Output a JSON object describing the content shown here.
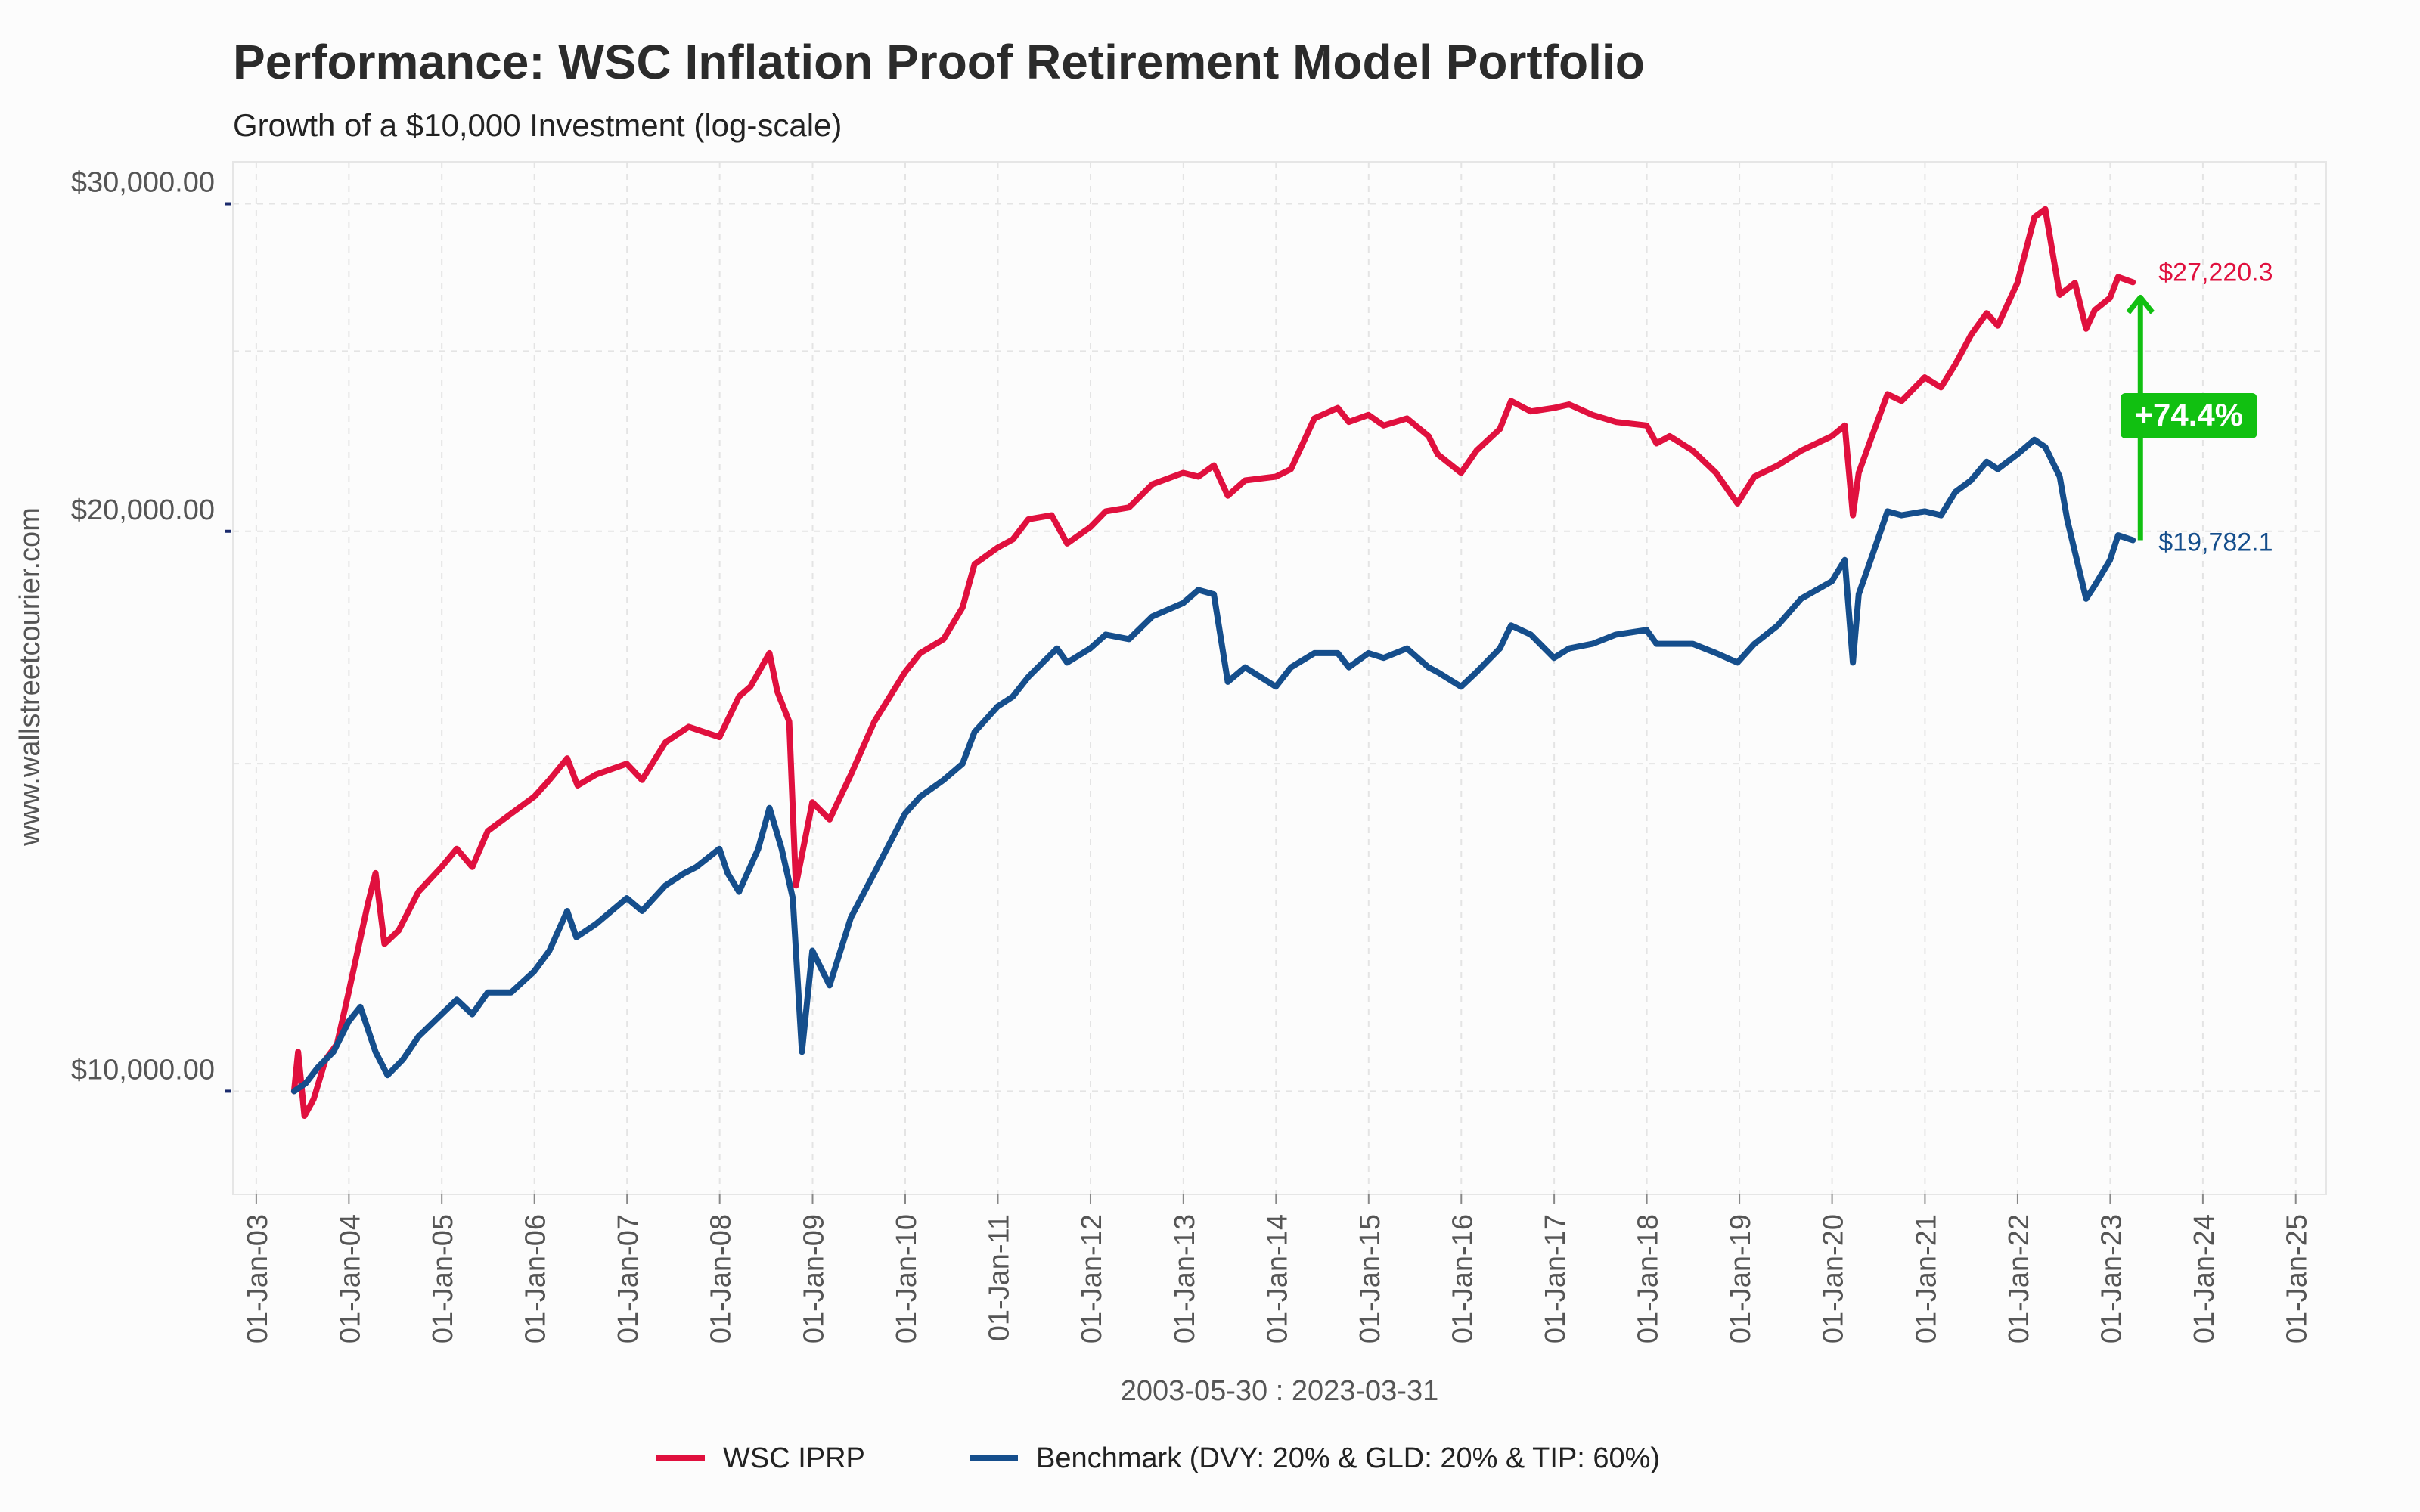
{
  "chart_data": {
    "type": "line",
    "title": "Performance: WSC Inflation Proof Retirement Model Portfolio",
    "subtitle": "Growth of a $10,000 Investment (log-scale)",
    "side_label": "www.wallstreetcourier.com",
    "xlabel": "2003-05-30 : 2023-03-31",
    "y_scale": "log",
    "ylim": [
      8800,
      31600
    ],
    "y_ticks": [
      10000,
      20000,
      30000
    ],
    "y_tick_labels": [
      "$10,000.00",
      "$20,000.00",
      "$30,000.00"
    ],
    "x_range": [
      "2002-10-01",
      "2025-05-01"
    ],
    "x_tick_labels": [
      "01-Jan-03",
      "01-Jan-04",
      "01-Jan-05",
      "01-Jan-06",
      "01-Jan-07",
      "01-Jan-08",
      "01-Jan-09",
      "01-Jan-10",
      "01-Jan-11",
      "01-Jan-12",
      "01-Jan-13",
      "01-Jan-14",
      "01-Jan-15",
      "01-Jan-16",
      "01-Jan-17",
      "01-Jan-18",
      "01-Jan-19",
      "01-Jan-20",
      "01-Jan-21",
      "01-Jan-22",
      "01-Jan-23",
      "01-Jan-24",
      "01-Jan-25"
    ],
    "x_tick_dates": [
      "2003-01-01",
      "2004-01-01",
      "2005-01-01",
      "2006-01-01",
      "2007-01-01",
      "2008-01-01",
      "2009-01-01",
      "2010-01-01",
      "2011-01-01",
      "2012-01-01",
      "2013-01-01",
      "2014-01-01",
      "2015-01-01",
      "2016-01-01",
      "2017-01-01",
      "2018-01-01",
      "2019-01-01",
      "2020-01-01",
      "2021-01-01",
      "2022-01-01",
      "2023-01-01",
      "2024-01-01",
      "2025-01-01"
    ],
    "grid": true,
    "legend_position": "bottom",
    "series": [
      {
        "name": "WSC IPRP",
        "color": "#e0103e",
        "end_label": "$27,220.3",
        "points": [
          [
            "2003-05-30",
            10000
          ],
          [
            "2003-06-15",
            10500
          ],
          [
            "2003-07-10",
            9700
          ],
          [
            "2003-08-15",
            9900
          ],
          [
            "2003-10-01",
            10400
          ],
          [
            "2003-11-15",
            10600
          ],
          [
            "2003-12-31",
            11300
          ],
          [
            "2004-03-15",
            12600
          ],
          [
            "2004-04-15",
            13100
          ],
          [
            "2004-05-20",
            12000
          ],
          [
            "2004-07-15",
            12200
          ],
          [
            "2004-10-01",
            12800
          ],
          [
            "2004-12-31",
            13200
          ],
          [
            "2005-03-01",
            13500
          ],
          [
            "2005-05-01",
            13200
          ],
          [
            "2005-07-01",
            13800
          ],
          [
            "2005-10-01",
            14100
          ],
          [
            "2005-12-31",
            14400
          ],
          [
            "2006-03-01",
            14700
          ],
          [
            "2006-05-10",
            15100
          ],
          [
            "2006-06-20",
            14600
          ],
          [
            "2006-09-01",
            14800
          ],
          [
            "2006-12-31",
            15000
          ],
          [
            "2007-03-01",
            14700
          ],
          [
            "2007-06-01",
            15400
          ],
          [
            "2007-09-01",
            15700
          ],
          [
            "2007-12-31",
            15500
          ],
          [
            "2008-03-17",
            16300
          ],
          [
            "2008-05-01",
            16500
          ],
          [
            "2008-07-15",
            17200
          ],
          [
            "2008-08-15",
            16400
          ],
          [
            "2008-10-01",
            15800
          ],
          [
            "2008-10-27",
            12900
          ],
          [
            "2008-12-31",
            14300
          ],
          [
            "2009-03-09",
            14000
          ],
          [
            "2009-06-01",
            14800
          ],
          [
            "2009-09-01",
            15800
          ],
          [
            "2009-12-31",
            16800
          ],
          [
            "2010-03-01",
            17200
          ],
          [
            "2010-06-01",
            17500
          ],
          [
            "2010-08-15",
            18200
          ],
          [
            "2010-10-01",
            19200
          ],
          [
            "2010-12-31",
            19600
          ],
          [
            "2011-03-01",
            19800
          ],
          [
            "2011-05-01",
            20300
          ],
          [
            "2011-08-01",
            20400
          ],
          [
            "2011-10-01",
            19700
          ],
          [
            "2011-12-31",
            20100
          ],
          [
            "2012-03-01",
            20500
          ],
          [
            "2012-06-01",
            20600
          ],
          [
            "2012-09-01",
            21200
          ],
          [
            "2012-12-31",
            21500
          ],
          [
            "2013-03-01",
            21400
          ],
          [
            "2013-05-01",
            21700
          ],
          [
            "2013-06-25",
            20900
          ],
          [
            "2013-09-01",
            21300
          ],
          [
            "2013-12-31",
            21400
          ],
          [
            "2014-03-01",
            21600
          ],
          [
            "2014-06-01",
            23000
          ],
          [
            "2014-09-01",
            23300
          ],
          [
            "2014-10-15",
            22900
          ],
          [
            "2014-12-31",
            23100
          ],
          [
            "2015-03-01",
            22800
          ],
          [
            "2015-06-01",
            23000
          ],
          [
            "2015-08-25",
            22500
          ],
          [
            "2015-09-30",
            22000
          ],
          [
            "2015-12-31",
            21500
          ],
          [
            "2016-03-01",
            22100
          ],
          [
            "2016-06-01",
            22700
          ],
          [
            "2016-07-15",
            23500
          ],
          [
            "2016-10-01",
            23200
          ],
          [
            "2016-12-31",
            23300
          ],
          [
            "2017-03-01",
            23400
          ],
          [
            "2017-06-01",
            23100
          ],
          [
            "2017-09-01",
            22900
          ],
          [
            "2017-12-31",
            22800
          ],
          [
            "2018-02-08",
            22300
          ],
          [
            "2018-04-01",
            22500
          ],
          [
            "2018-07-01",
            22100
          ],
          [
            "2018-10-01",
            21500
          ],
          [
            "2018-12-24",
            20700
          ],
          [
            "2019-03-01",
            21400
          ],
          [
            "2019-06-01",
            21700
          ],
          [
            "2019-09-01",
            22100
          ],
          [
            "2019-12-31",
            22500
          ],
          [
            "2020-02-20",
            22800
          ],
          [
            "2020-03-23",
            20400
          ],
          [
            "2020-04-15",
            21500
          ],
          [
            "2020-06-01",
            22400
          ],
          [
            "2020-08-06",
            23700
          ],
          [
            "2020-10-01",
            23500
          ],
          [
            "2020-12-31",
            24200
          ],
          [
            "2021-03-05",
            23900
          ],
          [
            "2021-05-01",
            24600
          ],
          [
            "2021-07-01",
            25500
          ],
          [
            "2021-09-01",
            26200
          ],
          [
            "2021-10-15",
            25800
          ],
          [
            "2021-12-31",
            27200
          ],
          [
            "2022-03-08",
            29500
          ],
          [
            "2022-04-20",
            29800
          ],
          [
            "2022-06-16",
            26800
          ],
          [
            "2022-08-15",
            27200
          ],
          [
            "2022-09-28",
            25700
          ],
          [
            "2022-11-01",
            26300
          ],
          [
            "2022-12-31",
            26700
          ],
          [
            "2023-02-01",
            27400
          ],
          [
            "2023-03-31",
            27220.3
          ]
        ]
      },
      {
        "name": "Benchmark (DVY: 20% & GLD: 20% & TIP: 60%)",
        "color": "#154e8c",
        "end_label": "$19,782.1",
        "points": [
          [
            "2003-05-30",
            10000
          ],
          [
            "2003-07-15",
            10100
          ],
          [
            "2003-09-01",
            10300
          ],
          [
            "2003-11-01",
            10500
          ],
          [
            "2003-12-31",
            10900
          ],
          [
            "2004-02-15",
            11100
          ],
          [
            "2004-04-15",
            10500
          ],
          [
            "2004-06-01",
            10200
          ],
          [
            "2004-08-01",
            10400
          ],
          [
            "2004-10-01",
            10700
          ],
          [
            "2004-12-31",
            11000
          ],
          [
            "2005-03-01",
            11200
          ],
          [
            "2005-05-01",
            11000
          ],
          [
            "2005-07-01",
            11300
          ],
          [
            "2005-10-01",
            11300
          ],
          [
            "2005-12-31",
            11600
          ],
          [
            "2006-03-01",
            11900
          ],
          [
            "2006-05-10",
            12500
          ],
          [
            "2006-06-15",
            12100
          ],
          [
            "2006-09-01",
            12300
          ],
          [
            "2006-12-31",
            12700
          ],
          [
            "2007-03-01",
            12500
          ],
          [
            "2007-06-01",
            12900
          ],
          [
            "2007-08-15",
            13100
          ],
          [
            "2007-10-01",
            13200
          ],
          [
            "2007-12-31",
            13500
          ],
          [
            "2008-02-01",
            13100
          ],
          [
            "2008-03-17",
            12800
          ],
          [
            "2008-06-01",
            13500
          ],
          [
            "2008-07-15",
            14200
          ],
          [
            "2008-09-01",
            13500
          ],
          [
            "2008-10-15",
            12700
          ],
          [
            "2008-11-20",
            10500
          ],
          [
            "2008-12-31",
            11900
          ],
          [
            "2009-03-09",
            11400
          ],
          [
            "2009-06-01",
            12400
          ],
          [
            "2009-09-01",
            13100
          ],
          [
            "2009-12-31",
            14100
          ],
          [
            "2010-03-01",
            14400
          ],
          [
            "2010-06-01",
            14700
          ],
          [
            "2010-08-15",
            15000
          ],
          [
            "2010-10-01",
            15600
          ],
          [
            "2010-12-31",
            16100
          ],
          [
            "2011-03-01",
            16300
          ],
          [
            "2011-05-01",
            16700
          ],
          [
            "2011-08-22",
            17300
          ],
          [
            "2011-10-01",
            17000
          ],
          [
            "2011-12-31",
            17300
          ],
          [
            "2012-03-01",
            17600
          ],
          [
            "2012-06-01",
            17500
          ],
          [
            "2012-09-01",
            18000
          ],
          [
            "2012-12-31",
            18300
          ],
          [
            "2013-03-01",
            18600
          ],
          [
            "2013-05-01",
            18500
          ],
          [
            "2013-06-25",
            16600
          ],
          [
            "2013-09-01",
            16900
          ],
          [
            "2013-12-31",
            16500
          ],
          [
            "2014-03-01",
            16900
          ],
          [
            "2014-06-01",
            17200
          ],
          [
            "2014-09-01",
            17200
          ],
          [
            "2014-10-15",
            16900
          ],
          [
            "2014-12-31",
            17200
          ],
          [
            "2015-03-01",
            17100
          ],
          [
            "2015-06-01",
            17300
          ],
          [
            "2015-08-25",
            16900
          ],
          [
            "2015-09-30",
            16800
          ],
          [
            "2015-12-31",
            16500
          ],
          [
            "2016-03-01",
            16800
          ],
          [
            "2016-06-01",
            17300
          ],
          [
            "2016-07-15",
            17800
          ],
          [
            "2016-10-01",
            17600
          ],
          [
            "2016-12-31",
            17100
          ],
          [
            "2017-03-01",
            17300
          ],
          [
            "2017-06-01",
            17400
          ],
          [
            "2017-09-01",
            17600
          ],
          [
            "2017-12-31",
            17700
          ],
          [
            "2018-02-08",
            17400
          ],
          [
            "2018-04-01",
            17400
          ],
          [
            "2018-07-01",
            17400
          ],
          [
            "2018-10-01",
            17200
          ],
          [
            "2018-12-24",
            17000
          ],
          [
            "2019-03-01",
            17400
          ],
          [
            "2019-06-01",
            17800
          ],
          [
            "2019-09-01",
            18400
          ],
          [
            "2019-12-31",
            18800
          ],
          [
            "2020-02-20",
            19300
          ],
          [
            "2020-03-23",
            17000
          ],
          [
            "2020-04-15",
            18500
          ],
          [
            "2020-06-01",
            19300
          ],
          [
            "2020-08-06",
            20500
          ],
          [
            "2020-10-01",
            20400
          ],
          [
            "2020-12-31",
            20500
          ],
          [
            "2021-03-05",
            20400
          ],
          [
            "2021-05-01",
            21000
          ],
          [
            "2021-07-01",
            21300
          ],
          [
            "2021-09-01",
            21800
          ],
          [
            "2021-10-15",
            21600
          ],
          [
            "2021-12-31",
            22000
          ],
          [
            "2022-03-08",
            22400
          ],
          [
            "2022-04-20",
            22200
          ],
          [
            "2022-06-16",
            21400
          ],
          [
            "2022-07-15",
            20300
          ],
          [
            "2022-09-28",
            18400
          ],
          [
            "2022-11-01",
            18700
          ],
          [
            "2022-12-31",
            19300
          ],
          [
            "2023-02-01",
            19900
          ],
          [
            "2023-03-31",
            19782.1
          ]
        ]
      }
    ],
    "annotation": {
      "label": "+74.4%",
      "color": "#11c011"
    }
  }
}
